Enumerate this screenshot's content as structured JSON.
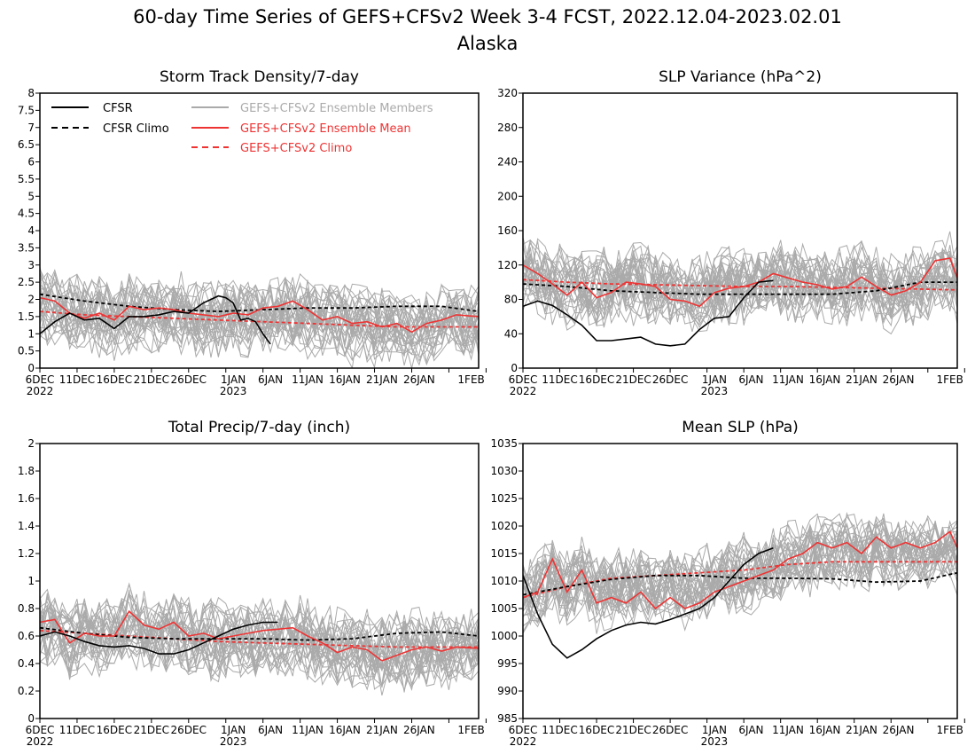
{
  "title": "60-day Time Series of GEFS+CFSv2 Week 3-4 FCST, 2022.12.04-2023.02.01",
  "subtitle": "Alaska",
  "colors": {
    "cfsr": "#000000",
    "members": "#aaaaaa",
    "ens_mean": "#ee3333"
  },
  "x_axis": {
    "days": 60,
    "start": "2022-12-04",
    "end": "2023-02-01",
    "tick_days": [
      1,
      6,
      11,
      16,
      21,
      26,
      31,
      36,
      41,
      46,
      51,
      56,
      61
    ],
    "tick_labels": [
      "6DEC",
      "11DEC",
      "16DEC",
      "21DEC",
      "26DEC",
      "1JAN",
      "6JAN",
      "11JAN",
      "16JAN",
      "21JAN",
      "26JAN",
      "1FEB"
    ],
    "tick_label_days": [
      1,
      6,
      11,
      16,
      21,
      27,
      32,
      37,
      42,
      47,
      52,
      59
    ],
    "year_labels": [
      "2022",
      "2023"
    ],
    "year_label_days": [
      1,
      27
    ]
  },
  "legend": {
    "cfsr": "CFSR",
    "cfsr_climo": "CFSR Climo",
    "members": "GEFS+CFSv2 Ensemble Members",
    "ens_mean": "GEFS+CFSv2 Ensemble Mean",
    "gefs_climo": "GEFS+CFSv2 Climo"
  },
  "chart_data": [
    {
      "type": "line",
      "title": "Storm Track Density/7-day",
      "ylim": [
        0,
        8
      ],
      "yticks": [
        "0",
        "0.5",
        "1",
        "1.5",
        "2",
        "2.5",
        "3",
        "3.5",
        "4",
        "4.5",
        "5",
        "5.5",
        "6",
        "6.5",
        "7",
        "7.5",
        "8"
      ],
      "member_count": 30,
      "series": [
        {
          "name": "CFSR",
          "style": "solid",
          "color": "#000000",
          "x": [
            0,
            2,
            4,
            6,
            8,
            10,
            12,
            14,
            16,
            18,
            20,
            22,
            24,
            25,
            26,
            27,
            28,
            29,
            30,
            31
          ],
          "y": [
            1.0,
            1.35,
            1.6,
            1.4,
            1.45,
            1.15,
            1.5,
            1.5,
            1.55,
            1.65,
            1.6,
            1.9,
            2.1,
            2.05,
            1.9,
            1.4,
            1.45,
            1.35,
            1.0,
            0.7
          ]
        },
        {
          "name": "CFSR Climo",
          "style": "dashed",
          "color": "#000000",
          "x": [
            0,
            6,
            12,
            18,
            24,
            30,
            36,
            42,
            48,
            54,
            59
          ],
          "y": [
            2.15,
            1.95,
            1.8,
            1.7,
            1.65,
            1.7,
            1.75,
            1.75,
            1.8,
            1.8,
            1.65
          ]
        },
        {
          "name": "GEFS+CFSv2 Ensemble Mean",
          "style": "solid",
          "color": "#ee3333",
          "x": [
            0,
            2,
            4,
            6,
            8,
            10,
            12,
            14,
            16,
            18,
            20,
            22,
            24,
            26,
            28,
            30,
            32,
            34,
            36,
            38,
            40,
            42,
            44,
            46,
            48,
            50,
            52,
            54,
            56,
            59
          ],
          "y": [
            2.05,
            1.95,
            1.6,
            1.45,
            1.6,
            1.4,
            1.8,
            1.7,
            1.75,
            1.7,
            1.6,
            1.55,
            1.5,
            1.6,
            1.55,
            1.75,
            1.8,
            1.95,
            1.7,
            1.4,
            1.5,
            1.3,
            1.35,
            1.2,
            1.3,
            1.05,
            1.3,
            1.4,
            1.55,
            1.5
          ]
        },
        {
          "name": "GEFS+CFSv2 Climo",
          "style": "dashed",
          "color": "#ee3333",
          "x": [
            0,
            6,
            12,
            18,
            24,
            30,
            36,
            42,
            48,
            54,
            59
          ],
          "y": [
            1.65,
            1.55,
            1.5,
            1.45,
            1.4,
            1.35,
            1.3,
            1.25,
            1.2,
            1.2,
            1.2
          ]
        }
      ]
    },
    {
      "type": "line",
      "title": "SLP Variance (hPa^2)",
      "ylim": [
        0,
        320
      ],
      "yticks": [
        "0",
        "40",
        "80",
        "120",
        "160",
        "200",
        "240",
        "280",
        "320"
      ],
      "member_count": 30,
      "series": [
        {
          "name": "CFSR",
          "style": "solid",
          "color": "#000000",
          "x": [
            0,
            2,
            4,
            6,
            8,
            10,
            12,
            14,
            16,
            18,
            20,
            22,
            24,
            26,
            28,
            30,
            32,
            34
          ],
          "y": [
            72,
            78,
            73,
            62,
            50,
            32,
            32,
            34,
            36,
            28,
            26,
            28,
            45,
            58,
            60,
            82,
            100,
            102
          ]
        },
        {
          "name": "CFSR Climo",
          "style": "dashed",
          "color": "#000000",
          "x": [
            0,
            6,
            12,
            18,
            24,
            30,
            36,
            42,
            48,
            54,
            59
          ],
          "y": [
            98,
            95,
            90,
            88,
            86,
            86,
            86,
            86,
            90,
            100,
            100
          ]
        },
        {
          "name": "GEFS+CFSv2 Ensemble Mean",
          "style": "solid",
          "color": "#ee3333",
          "x": [
            0,
            2,
            4,
            6,
            8,
            10,
            12,
            14,
            16,
            18,
            20,
            22,
            24,
            26,
            28,
            30,
            32,
            34,
            36,
            38,
            40,
            42,
            44,
            46,
            48,
            50,
            52,
            54,
            56,
            58,
            59
          ],
          "y": [
            120,
            110,
            98,
            85,
            100,
            82,
            88,
            100,
            98,
            95,
            80,
            78,
            72,
            88,
            93,
            95,
            100,
            110,
            105,
            100,
            97,
            92,
            95,
            106,
            95,
            85,
            90,
            100,
            125,
            128,
            105
          ]
        },
        {
          "name": "GEFS+CFSv2 Climo",
          "style": "dashed",
          "color": "#ee3333",
          "x": [
            0,
            6,
            12,
            18,
            24,
            30,
            36,
            42,
            48,
            54,
            59
          ],
          "y": [
            103,
            100,
            98,
            97,
            96,
            95,
            95,
            94,
            93,
            92,
            91
          ]
        }
      ]
    },
    {
      "type": "line",
      "title": "Total Precip/7-day (inch)",
      "ylim": [
        0,
        2
      ],
      "yticks": [
        "0",
        "0.2",
        "0.4",
        "0.6",
        "0.8",
        "1",
        "1.2",
        "1.4",
        "1.6",
        "1.8",
        "2"
      ],
      "member_count": 30,
      "series": [
        {
          "name": "CFSR",
          "style": "solid",
          "color": "#000000",
          "x": [
            0,
            2,
            4,
            6,
            8,
            10,
            12,
            14,
            16,
            18,
            20,
            22,
            24,
            26,
            28,
            30,
            32
          ],
          "y": [
            0.6,
            0.63,
            0.6,
            0.56,
            0.53,
            0.52,
            0.53,
            0.51,
            0.47,
            0.47,
            0.5,
            0.55,
            0.6,
            0.65,
            0.68,
            0.7,
            0.7
          ]
        },
        {
          "name": "CFSR Climo",
          "style": "dashed",
          "color": "#000000",
          "x": [
            0,
            6,
            12,
            18,
            24,
            30,
            36,
            42,
            48,
            54,
            59
          ],
          "y": [
            0.66,
            0.62,
            0.59,
            0.58,
            0.58,
            0.58,
            0.57,
            0.58,
            0.62,
            0.63,
            0.6
          ]
        },
        {
          "name": "GEFS+CFSv2 Ensemble Mean",
          "style": "solid",
          "color": "#ee3333",
          "x": [
            0,
            2,
            4,
            6,
            8,
            10,
            12,
            14,
            16,
            18,
            20,
            22,
            24,
            26,
            28,
            30,
            32,
            34,
            36,
            38,
            40,
            42,
            44,
            46,
            48,
            50,
            52,
            54,
            56,
            59
          ],
          "y": [
            0.7,
            0.72,
            0.55,
            0.62,
            0.6,
            0.6,
            0.78,
            0.68,
            0.65,
            0.7,
            0.6,
            0.62,
            0.58,
            0.6,
            0.62,
            0.64,
            0.65,
            0.66,
            0.6,
            0.55,
            0.48,
            0.52,
            0.5,
            0.42,
            0.46,
            0.5,
            0.52,
            0.49,
            0.52,
            0.51
          ]
        },
        {
          "name": "GEFS+CFSv2 Climo",
          "style": "dashed",
          "color": "#ee3333",
          "x": [
            0,
            6,
            12,
            18,
            24,
            30,
            36,
            42,
            48,
            54,
            59
          ],
          "y": [
            0.64,
            0.62,
            0.6,
            0.58,
            0.56,
            0.55,
            0.54,
            0.53,
            0.52,
            0.52,
            0.52
          ]
        }
      ]
    },
    {
      "type": "line",
      "title": "Mean SLP (hPa)",
      "ylim": [
        985,
        1035
      ],
      "yticks": [
        "985",
        "990",
        "995",
        "1000",
        "1005",
        "1010",
        "1015",
        "1020",
        "1025",
        "1030",
        "1035"
      ],
      "member_count": 30,
      "series": [
        {
          "name": "CFSR",
          "style": "solid",
          "color": "#000000",
          "x": [
            0,
            2,
            4,
            6,
            8,
            10,
            12,
            14,
            16,
            18,
            20,
            22,
            24,
            26,
            28,
            30,
            32,
            34
          ],
          "y": [
            1011,
            1004,
            998.5,
            996,
            997.5,
            999.5,
            1001,
            1002,
            1002.5,
            1002.2,
            1003,
            1004,
            1005,
            1007,
            1010,
            1013,
            1015,
            1016
          ]
        },
        {
          "name": "CFSR Climo",
          "style": "dashed",
          "color": "#000000",
          "x": [
            0,
            6,
            12,
            18,
            24,
            30,
            36,
            42,
            48,
            54,
            59
          ],
          "y": [
            1007.5,
            1009,
            1010.3,
            1011,
            1011,
            1010.5,
            1010.5,
            1010.4,
            1009.8,
            1010,
            1011.5
          ]
        },
        {
          "name": "GEFS+CFSv2 Ensemble Mean",
          "style": "solid",
          "color": "#ee3333",
          "x": [
            0,
            2,
            4,
            6,
            8,
            10,
            12,
            14,
            16,
            18,
            20,
            22,
            24,
            26,
            28,
            30,
            32,
            34,
            36,
            38,
            40,
            42,
            44,
            46,
            48,
            50,
            52,
            54,
            56,
            58,
            59
          ],
          "y": [
            1007,
            1008,
            1014,
            1008,
            1012,
            1006,
            1007,
            1006,
            1008,
            1005,
            1007,
            1005,
            1006,
            1008,
            1009,
            1010,
            1011,
            1012,
            1014,
            1015,
            1017,
            1016,
            1017,
            1015,
            1018,
            1016,
            1017,
            1016,
            1017,
            1019,
            1016
          ]
        },
        {
          "name": "GEFS+CFSv2 Climo",
          "style": "dashed",
          "color": "#ee3333",
          "x": [
            0,
            6,
            12,
            18,
            24,
            30,
            36,
            42,
            48,
            54,
            59
          ],
          "y": [
            1007,
            1009,
            1010.5,
            1011,
            1011.5,
            1012,
            1013,
            1013.5,
            1013.5,
            1013.5,
            1013.5
          ]
        }
      ]
    }
  ]
}
